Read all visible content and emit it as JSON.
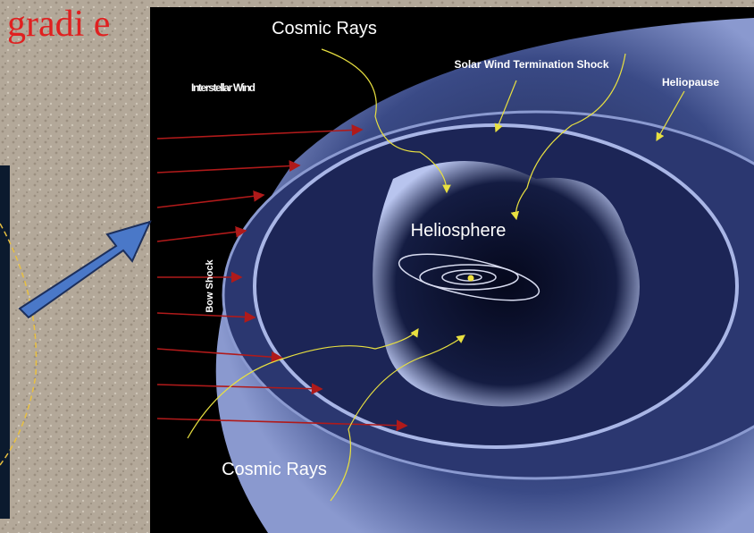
{
  "slide": {
    "title_fragment": "gradi e"
  },
  "diagram": {
    "labels": {
      "cosmic_rays_top": "Cosmic Rays",
      "termination_shock": "Solar Wind Termination Shock",
      "heliopause": "Heliopause",
      "interstellar_wind": "Interstellar Wind",
      "bow_shock": "Bow Shock",
      "heliosphere": "Heliosphere",
      "cosmic_rays_bottom": "Cosmic Rays"
    }
  }
}
